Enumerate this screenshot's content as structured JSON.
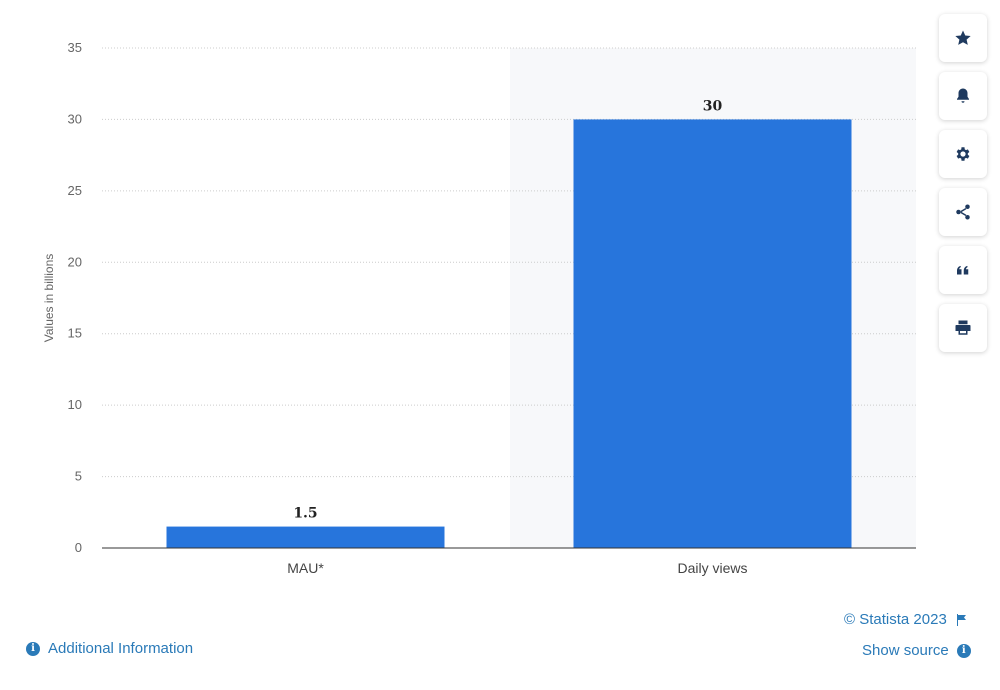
{
  "chart_data": {
    "type": "bar",
    "categories": [
      "MAU*",
      "Daily views"
    ],
    "values": [
      1.5,
      30
    ],
    "data_labels": [
      "1.5",
      "30"
    ],
    "ylabel": "Values in billions",
    "ylim": [
      0,
      35
    ],
    "yticks": [
      0,
      5,
      10,
      15,
      20,
      25,
      30,
      35
    ],
    "grid": true,
    "bar_color": "#2775dc",
    "highlight_band_color": "#f7f8fa",
    "gridline_color": "#cccccc"
  },
  "toolbar": {
    "items": [
      {
        "name": "favorite-button",
        "icon": "star-icon"
      },
      {
        "name": "notification-button",
        "icon": "bell-icon"
      },
      {
        "name": "settings-button",
        "icon": "gear-icon"
      },
      {
        "name": "share-button",
        "icon": "share-icon"
      },
      {
        "name": "cite-button",
        "icon": "quote-icon"
      },
      {
        "name": "print-button",
        "icon": "print-icon"
      }
    ]
  },
  "footer": {
    "copyright": "© Statista 2023",
    "show_source": "Show source",
    "additional_info": "Additional Information",
    "link_color": "#2a7ab8"
  }
}
